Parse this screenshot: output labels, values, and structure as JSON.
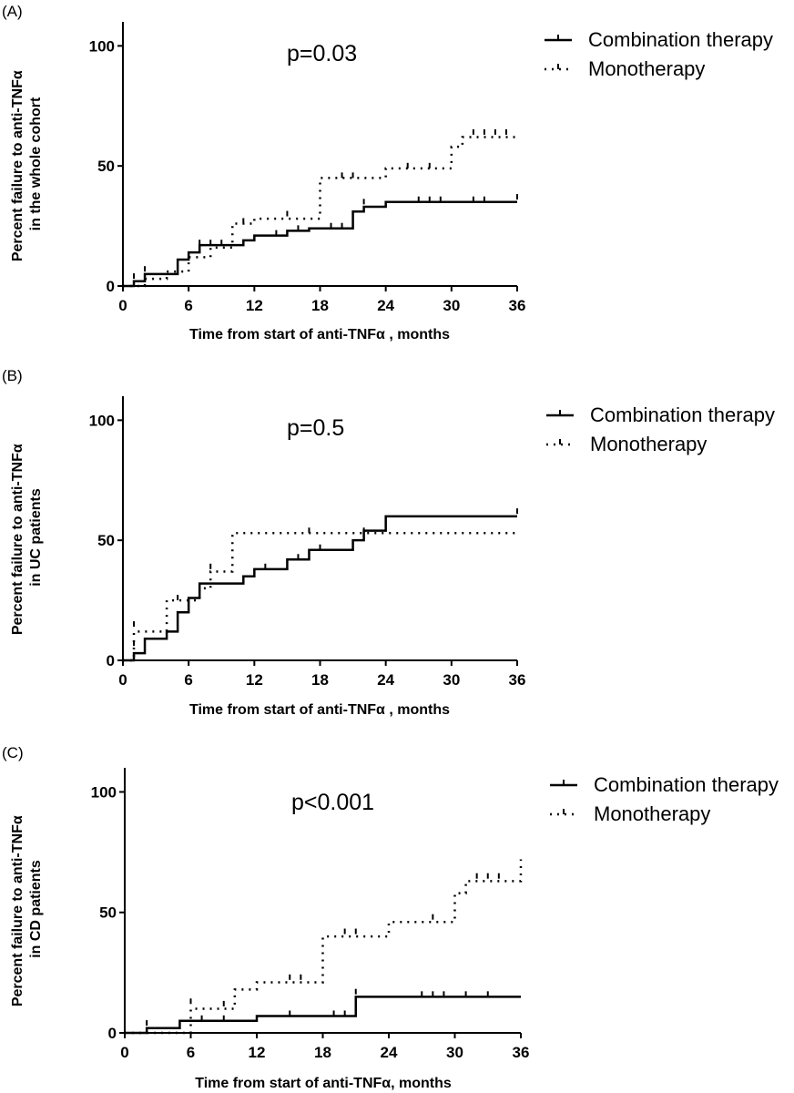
{
  "chart_data": [
    {
      "panel": "(A)",
      "type": "line",
      "subtype": "kaplan-meier step",
      "p_value": "p=0.03",
      "xlabel": "Time from start of anti-TNFα , months",
      "ylabel_lines": [
        "Percent failure to anti-TNFα",
        "in the whole cohort"
      ],
      "xlim": [
        0,
        36
      ],
      "ylim": [
        0,
        110
      ],
      "xticks": [
        0,
        6,
        12,
        18,
        24,
        30,
        36
      ],
      "yticks": [
        0,
        50,
        100
      ],
      "legend_position": "top-right",
      "series": [
        {
          "name": "Combination therapy",
          "style": "solid",
          "steps": [
            [
              0,
              0
            ],
            [
              1,
              2
            ],
            [
              2,
              5
            ],
            [
              5,
              11
            ],
            [
              6,
              14
            ],
            [
              7,
              17
            ],
            [
              10,
              17
            ],
            [
              11,
              19
            ],
            [
              12,
              21
            ],
            [
              15,
              23
            ],
            [
              17,
              24
            ],
            [
              21,
              31
            ],
            [
              22,
              33
            ],
            [
              24,
              35
            ],
            [
              36,
              35
            ]
          ],
          "censored": [
            [
              1,
              3
            ],
            [
              2,
              6
            ],
            [
              7,
              17
            ],
            [
              8,
              17
            ],
            [
              9,
              17
            ],
            [
              14,
              21
            ],
            [
              16,
              23
            ],
            [
              19,
              24
            ],
            [
              20,
              24
            ],
            [
              22,
              34
            ],
            [
              27,
              35
            ],
            [
              28,
              35
            ],
            [
              29,
              35
            ],
            [
              32,
              35
            ],
            [
              33,
              35
            ],
            [
              36,
              36
            ]
          ]
        },
        {
          "name": "Monotherapy",
          "style": "dotted",
          "steps": [
            [
              0,
              0
            ],
            [
              2,
              3
            ],
            [
              4,
              6
            ],
            [
              6,
              12
            ],
            [
              8,
              16
            ],
            [
              10,
              26
            ],
            [
              12,
              28
            ],
            [
              18,
              45
            ],
            [
              24,
              49
            ],
            [
              30,
              58
            ],
            [
              31,
              62
            ],
            [
              36,
              62
            ]
          ],
          "censored": [
            [
              7,
              14
            ],
            [
              11,
              26
            ],
            [
              15,
              29
            ],
            [
              20,
              45
            ],
            [
              21,
              45
            ],
            [
              26,
              49
            ],
            [
              28,
              49
            ],
            [
              32,
              63
            ],
            [
              33,
              63
            ],
            [
              34,
              63
            ],
            [
              35,
              63
            ]
          ]
        }
      ]
    },
    {
      "panel": "(B)",
      "type": "line",
      "subtype": "kaplan-meier step",
      "p_value": "p=0.5",
      "xlabel": "Time from start of anti-TNFα , months",
      "ylabel_lines": [
        "Percent failure to anti-TNFα",
        "in UC patients"
      ],
      "xlim": [
        0,
        36
      ],
      "ylim": [
        0,
        110
      ],
      "xticks": [
        0,
        6,
        12,
        18,
        24,
        30,
        36
      ],
      "yticks": [
        0,
        50,
        100
      ],
      "legend_position": "top-right",
      "series": [
        {
          "name": "Combination therapy",
          "style": "solid",
          "steps": [
            [
              0,
              0
            ],
            [
              1,
              3
            ],
            [
              2,
              9
            ],
            [
              4,
              12
            ],
            [
              5,
              20
            ],
            [
              6,
              26
            ],
            [
              7,
              32
            ],
            [
              11,
              35
            ],
            [
              12,
              38
            ],
            [
              15,
              42
            ],
            [
              17,
              46
            ],
            [
              21,
              50
            ],
            [
              22,
              54
            ],
            [
              24,
              60
            ],
            [
              36,
              60
            ]
          ],
          "censored": [
            [
              1,
              6
            ],
            [
              13,
              38
            ],
            [
              16,
              42
            ],
            [
              18,
              46
            ],
            [
              36,
              61
            ]
          ]
        },
        {
          "name": "Monotherapy",
          "style": "dotted",
          "steps": [
            [
              0,
              0
            ],
            [
              1,
              12
            ],
            [
              4,
              25
            ],
            [
              7,
              30
            ],
            [
              8,
              37
            ],
            [
              10,
              53
            ],
            [
              36,
              53
            ]
          ],
          "censored": [
            [
              1,
              14
            ],
            [
              5,
              25
            ],
            [
              8,
              38
            ],
            [
              17,
              53
            ],
            [
              22,
              53
            ]
          ]
        }
      ]
    },
    {
      "panel": "(C)",
      "type": "line",
      "subtype": "kaplan-meier step",
      "p_value": "p<0.001",
      "xlabel": "Time from start of anti-TNFα, months",
      "ylabel_lines": [
        "Percent failure to anti-TNFα",
        "in CD patients"
      ],
      "xlim": [
        0,
        36
      ],
      "ylim": [
        0,
        110
      ],
      "xticks": [
        0,
        6,
        12,
        18,
        24,
        30,
        36
      ],
      "yticks": [
        0,
        50,
        100
      ],
      "legend_position": "top-right",
      "series": [
        {
          "name": "Combination therapy",
          "style": "solid",
          "steps": [
            [
              0,
              0
            ],
            [
              2,
              2
            ],
            [
              5,
              5
            ],
            [
              12,
              7
            ],
            [
              21,
              15
            ],
            [
              36,
              15
            ]
          ],
          "censored": [
            [
              2,
              3
            ],
            [
              7,
              5
            ],
            [
              9,
              5
            ],
            [
              15,
              7
            ],
            [
              19,
              7
            ],
            [
              20,
              7
            ],
            [
              21,
              16
            ],
            [
              27,
              15
            ],
            [
              28,
              15
            ],
            [
              29,
              15
            ],
            [
              31,
              15
            ],
            [
              33,
              15
            ]
          ]
        },
        {
          "name": "Monotherapy",
          "style": "dotted",
          "steps": [
            [
              0,
              0
            ],
            [
              6,
              10
            ],
            [
              10,
              18
            ],
            [
              12,
              21
            ],
            [
              18,
              40
            ],
            [
              24,
              46
            ],
            [
              30,
              58
            ],
            [
              31,
              63
            ],
            [
              36,
              72
            ]
          ],
          "censored": [
            [
              6,
              12
            ],
            [
              9,
              11
            ],
            [
              15,
              22
            ],
            [
              16,
              22
            ],
            [
              20,
              41
            ],
            [
              21,
              41
            ],
            [
              28,
              47
            ],
            [
              32,
              64
            ],
            [
              33,
              64
            ],
            [
              34,
              64
            ]
          ]
        }
      ]
    }
  ]
}
